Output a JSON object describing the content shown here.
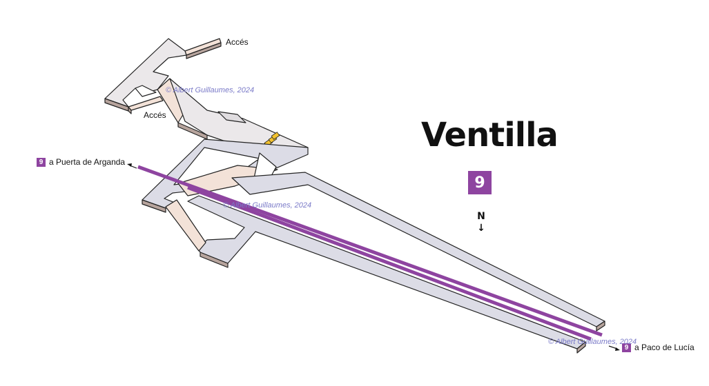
{
  "station": {
    "name": "Ventilla",
    "line_badge": "9",
    "line_color": "#8e44a0"
  },
  "compass": {
    "letter": "N",
    "arrow": "↓"
  },
  "exits": [
    {
      "label": "Accés"
    },
    {
      "label": "Accés"
    }
  ],
  "directions": [
    {
      "badge": "9",
      "label": "a Puerta de Arganda"
    },
    {
      "badge": "9",
      "label": "a Paco de Lucía"
    }
  ],
  "credits": [
    {
      "text": "© Albert Guillaumes, 2024"
    },
    {
      "text": "© Albert Guillaumes, 2024"
    },
    {
      "text": "© Albert Guillaumes, 2024"
    }
  ],
  "colors": {
    "corridor": "#ebe8ea",
    "passage": "#f3e2d8",
    "platform": "#dcdce6",
    "side": "#b7a49d",
    "outline": "#222222",
    "escalator": "#f2c12e",
    "track": "#8e44a0"
  }
}
